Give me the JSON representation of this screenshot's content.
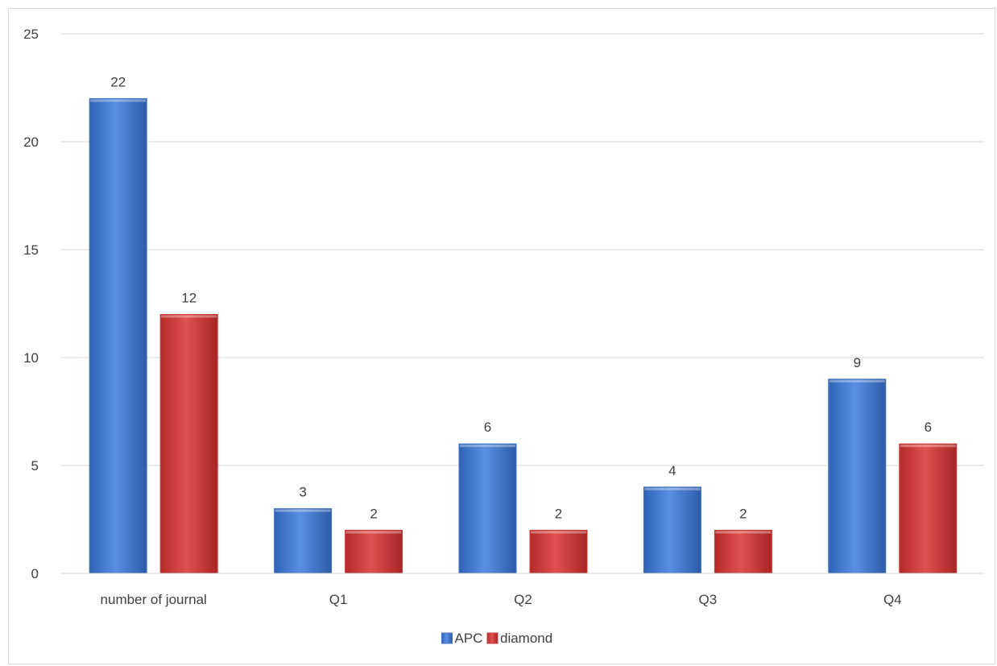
{
  "chart_data": {
    "type": "bar",
    "categories": [
      "number of journal",
      "Q1",
      "Q2",
      "Q3",
      "Q4"
    ],
    "series": [
      {
        "name": "APC",
        "values": [
          22,
          3,
          6,
          4,
          9
        ],
        "color": "#4472C4"
      },
      {
        "name": "diamond",
        "values": [
          12,
          2,
          2,
          2,
          6
        ],
        "color": "#D03A3A"
      }
    ],
    "ylim": [
      0,
      25
    ],
    "yticks": [
      0,
      5,
      10,
      15,
      20,
      25
    ],
    "grid": true,
    "legend_position": "bottom-center",
    "data_labels": true
  }
}
